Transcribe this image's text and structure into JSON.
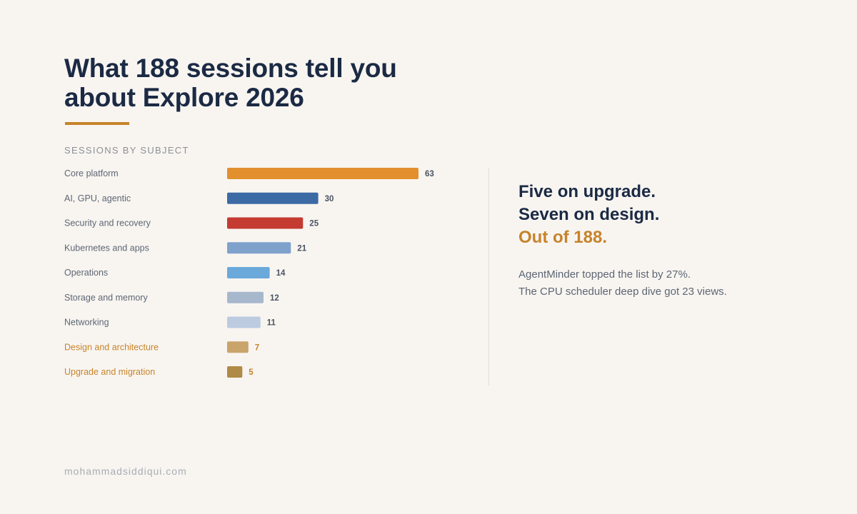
{
  "title": {
    "line1": "What 188 sessions tell you",
    "line2": "about Explore 2026"
  },
  "section_label": "SESSIONS BY SUBJECT",
  "chart_data": {
    "type": "bar",
    "orientation": "horizontal",
    "title": "SESSIONS BY SUBJECT",
    "categories": [
      "Core platform",
      "AI, GPU, agentic",
      "Security and recovery",
      "Kubernetes and apps",
      "Operations",
      "Storage and memory",
      "Networking",
      "Design and architecture",
      "Upgrade and migration"
    ],
    "values": [
      63,
      30,
      25,
      21,
      14,
      12,
      11,
      7,
      5
    ],
    "bar_colors": [
      "#e2902e",
      "#3c6aa4",
      "#c33b31",
      "#7fa2cd",
      "#6aa9da",
      "#a7b8cd",
      "#bccbe0",
      "#c9a46b",
      "#b08a47"
    ],
    "label_colors": [
      "#5d6673",
      "#5d6673",
      "#5d6673",
      "#5d6673",
      "#5d6673",
      "#5d6673",
      "#5d6673",
      "#c7832a",
      "#c7832a"
    ],
    "xlim": [
      0,
      63
    ],
    "data_labels": true,
    "grid": false,
    "legend": false
  },
  "headline": {
    "line1": "Five on upgrade.",
    "line2": "Seven on design.",
    "line3": "Out of 188."
  },
  "notes": {
    "line1": "AgentMinder topped the list by 27%.",
    "line2": "The CPU scheduler deep dive got 23 views."
  },
  "footer": "mohammadsiddiqui.com",
  "colors": {
    "background": "#f8f5f1",
    "navy": "#1b2a44",
    "accent": "#c7832a"
  }
}
